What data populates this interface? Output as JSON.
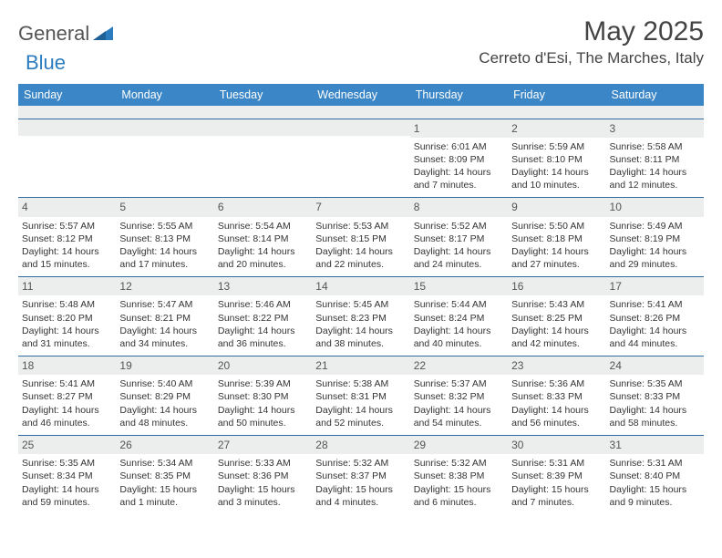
{
  "brand": {
    "part1": "General",
    "part2": "Blue"
  },
  "header": {
    "month_title": "May 2025",
    "location": "Cerreto d'Esi, The Marches, Italy"
  },
  "colors": {
    "header_bg": "#3b86c6",
    "header_text": "#ffffff",
    "row_divider": "#2f6aa0",
    "daynum_bg": "#eceded",
    "body_text": "#333333",
    "logo_blue": "#2b7bbf"
  },
  "day_headers": [
    "Sunday",
    "Monday",
    "Tuesday",
    "Wednesday",
    "Thursday",
    "Friday",
    "Saturday"
  ],
  "weeks": [
    [
      {
        "empty": true
      },
      {
        "empty": true
      },
      {
        "empty": true
      },
      {
        "empty": true
      },
      {
        "n": "1",
        "sunrise": "Sunrise: 6:01 AM",
        "sunset": "Sunset: 8:09 PM",
        "day1": "Daylight: 14 hours",
        "day2": "and 7 minutes."
      },
      {
        "n": "2",
        "sunrise": "Sunrise: 5:59 AM",
        "sunset": "Sunset: 8:10 PM",
        "day1": "Daylight: 14 hours",
        "day2": "and 10 minutes."
      },
      {
        "n": "3",
        "sunrise": "Sunrise: 5:58 AM",
        "sunset": "Sunset: 8:11 PM",
        "day1": "Daylight: 14 hours",
        "day2": "and 12 minutes."
      }
    ],
    [
      {
        "n": "4",
        "sunrise": "Sunrise: 5:57 AM",
        "sunset": "Sunset: 8:12 PM",
        "day1": "Daylight: 14 hours",
        "day2": "and 15 minutes."
      },
      {
        "n": "5",
        "sunrise": "Sunrise: 5:55 AM",
        "sunset": "Sunset: 8:13 PM",
        "day1": "Daylight: 14 hours",
        "day2": "and 17 minutes."
      },
      {
        "n": "6",
        "sunrise": "Sunrise: 5:54 AM",
        "sunset": "Sunset: 8:14 PM",
        "day1": "Daylight: 14 hours",
        "day2": "and 20 minutes."
      },
      {
        "n": "7",
        "sunrise": "Sunrise: 5:53 AM",
        "sunset": "Sunset: 8:15 PM",
        "day1": "Daylight: 14 hours",
        "day2": "and 22 minutes."
      },
      {
        "n": "8",
        "sunrise": "Sunrise: 5:52 AM",
        "sunset": "Sunset: 8:17 PM",
        "day1": "Daylight: 14 hours",
        "day2": "and 24 minutes."
      },
      {
        "n": "9",
        "sunrise": "Sunrise: 5:50 AM",
        "sunset": "Sunset: 8:18 PM",
        "day1": "Daylight: 14 hours",
        "day2": "and 27 minutes."
      },
      {
        "n": "10",
        "sunrise": "Sunrise: 5:49 AM",
        "sunset": "Sunset: 8:19 PM",
        "day1": "Daylight: 14 hours",
        "day2": "and 29 minutes."
      }
    ],
    [
      {
        "n": "11",
        "sunrise": "Sunrise: 5:48 AM",
        "sunset": "Sunset: 8:20 PM",
        "day1": "Daylight: 14 hours",
        "day2": "and 31 minutes."
      },
      {
        "n": "12",
        "sunrise": "Sunrise: 5:47 AM",
        "sunset": "Sunset: 8:21 PM",
        "day1": "Daylight: 14 hours",
        "day2": "and 34 minutes."
      },
      {
        "n": "13",
        "sunrise": "Sunrise: 5:46 AM",
        "sunset": "Sunset: 8:22 PM",
        "day1": "Daylight: 14 hours",
        "day2": "and 36 minutes."
      },
      {
        "n": "14",
        "sunrise": "Sunrise: 5:45 AM",
        "sunset": "Sunset: 8:23 PM",
        "day1": "Daylight: 14 hours",
        "day2": "and 38 minutes."
      },
      {
        "n": "15",
        "sunrise": "Sunrise: 5:44 AM",
        "sunset": "Sunset: 8:24 PM",
        "day1": "Daylight: 14 hours",
        "day2": "and 40 minutes."
      },
      {
        "n": "16",
        "sunrise": "Sunrise: 5:43 AM",
        "sunset": "Sunset: 8:25 PM",
        "day1": "Daylight: 14 hours",
        "day2": "and 42 minutes."
      },
      {
        "n": "17",
        "sunrise": "Sunrise: 5:41 AM",
        "sunset": "Sunset: 8:26 PM",
        "day1": "Daylight: 14 hours",
        "day2": "and 44 minutes."
      }
    ],
    [
      {
        "n": "18",
        "sunrise": "Sunrise: 5:41 AM",
        "sunset": "Sunset: 8:27 PM",
        "day1": "Daylight: 14 hours",
        "day2": "and 46 minutes."
      },
      {
        "n": "19",
        "sunrise": "Sunrise: 5:40 AM",
        "sunset": "Sunset: 8:29 PM",
        "day1": "Daylight: 14 hours",
        "day2": "and 48 minutes."
      },
      {
        "n": "20",
        "sunrise": "Sunrise: 5:39 AM",
        "sunset": "Sunset: 8:30 PM",
        "day1": "Daylight: 14 hours",
        "day2": "and 50 minutes."
      },
      {
        "n": "21",
        "sunrise": "Sunrise: 5:38 AM",
        "sunset": "Sunset: 8:31 PM",
        "day1": "Daylight: 14 hours",
        "day2": "and 52 minutes."
      },
      {
        "n": "22",
        "sunrise": "Sunrise: 5:37 AM",
        "sunset": "Sunset: 8:32 PM",
        "day1": "Daylight: 14 hours",
        "day2": "and 54 minutes."
      },
      {
        "n": "23",
        "sunrise": "Sunrise: 5:36 AM",
        "sunset": "Sunset: 8:33 PM",
        "day1": "Daylight: 14 hours",
        "day2": "and 56 minutes."
      },
      {
        "n": "24",
        "sunrise": "Sunrise: 5:35 AM",
        "sunset": "Sunset: 8:33 PM",
        "day1": "Daylight: 14 hours",
        "day2": "and 58 minutes."
      }
    ],
    [
      {
        "n": "25",
        "sunrise": "Sunrise: 5:35 AM",
        "sunset": "Sunset: 8:34 PM",
        "day1": "Daylight: 14 hours",
        "day2": "and 59 minutes."
      },
      {
        "n": "26",
        "sunrise": "Sunrise: 5:34 AM",
        "sunset": "Sunset: 8:35 PM",
        "day1": "Daylight: 15 hours",
        "day2": "and 1 minute."
      },
      {
        "n": "27",
        "sunrise": "Sunrise: 5:33 AM",
        "sunset": "Sunset: 8:36 PM",
        "day1": "Daylight: 15 hours",
        "day2": "and 3 minutes."
      },
      {
        "n": "28",
        "sunrise": "Sunrise: 5:32 AM",
        "sunset": "Sunset: 8:37 PM",
        "day1": "Daylight: 15 hours",
        "day2": "and 4 minutes."
      },
      {
        "n": "29",
        "sunrise": "Sunrise: 5:32 AM",
        "sunset": "Sunset: 8:38 PM",
        "day1": "Daylight: 15 hours",
        "day2": "and 6 minutes."
      },
      {
        "n": "30",
        "sunrise": "Sunrise: 5:31 AM",
        "sunset": "Sunset: 8:39 PM",
        "day1": "Daylight: 15 hours",
        "day2": "and 7 minutes."
      },
      {
        "n": "31",
        "sunrise": "Sunrise: 5:31 AM",
        "sunset": "Sunset: 8:40 PM",
        "day1": "Daylight: 15 hours",
        "day2": "and 9 minutes."
      }
    ]
  ]
}
